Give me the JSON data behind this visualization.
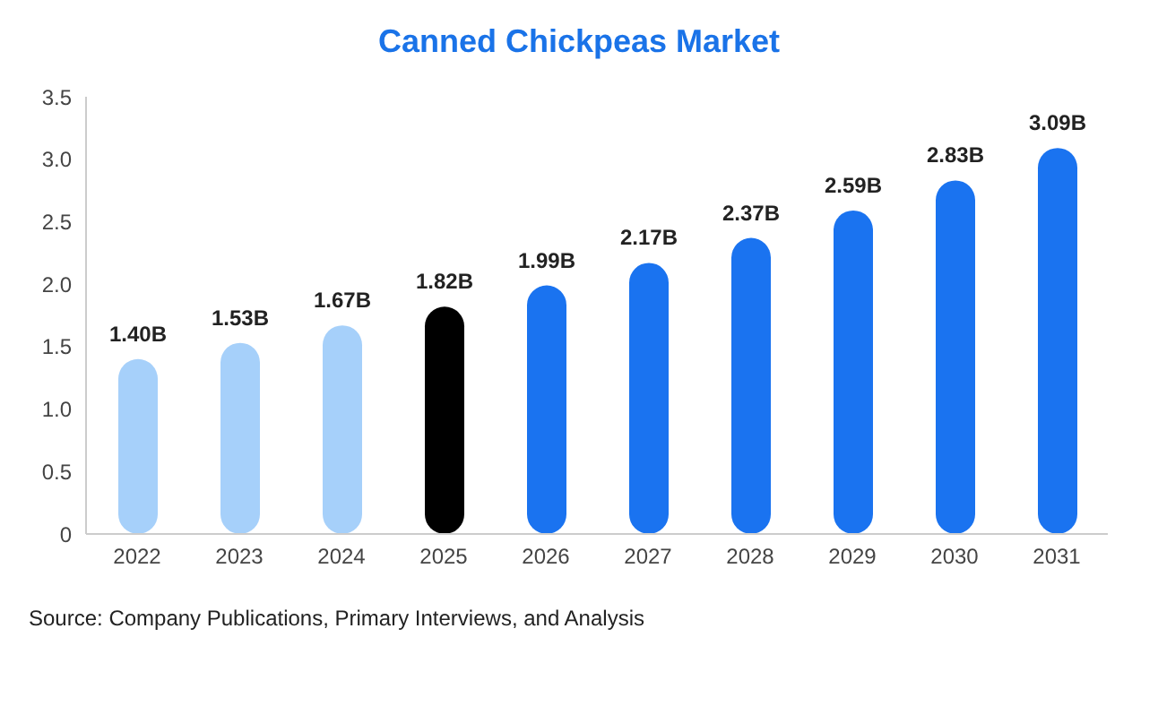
{
  "chart_data": {
    "type": "bar",
    "title": "Canned Chickpeas Market",
    "categories": [
      "2022",
      "2023",
      "2024",
      "2025",
      "2026",
      "2027",
      "2028",
      "2029",
      "2030",
      "2031"
    ],
    "values": [
      1.4,
      1.53,
      1.67,
      1.82,
      1.99,
      2.17,
      2.37,
      2.59,
      2.83,
      3.09
    ],
    "colors": [
      "#a6d0fa",
      "#a6d0fa",
      "#a6d0fa",
      "#000000",
      "#1a73f0",
      "#1a73f0",
      "#1a73f0",
      "#1a73f0",
      "#1a73f0",
      "#1a73f0"
    ],
    "value_labels": [
      "1.40B",
      "1.53B",
      "1.67B",
      "1.82B",
      "1.99B",
      "2.17B",
      "2.37B",
      "2.59B",
      "2.83B",
      "3.09B"
    ],
    "ylim": [
      0,
      3.5
    ],
    "yticks": [
      0,
      0.5,
      {
        "value": 1,
        "label": "1.0"
      },
      1.5,
      {
        "value": 2,
        "label": "2.0"
      },
      2.5,
      {
        "value": 3,
        "label": "3.0"
      },
      3.5
    ],
    "grid": false,
    "annotations": [
      "Source: Company Publications, Primary Interviews, and Analysis"
    ]
  }
}
